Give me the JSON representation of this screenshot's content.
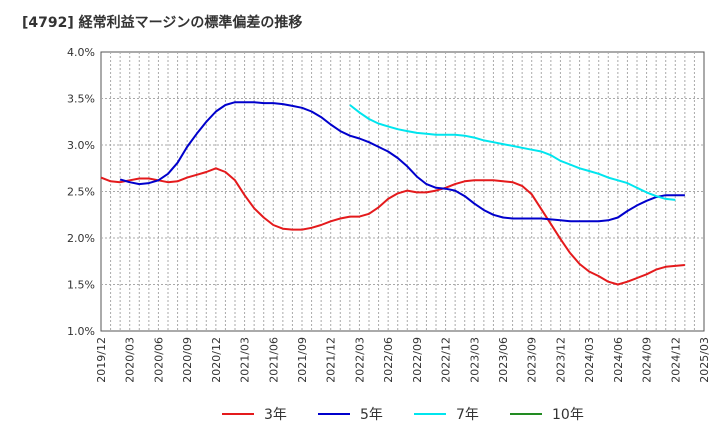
{
  "chart_data": {
    "type": "line",
    "title": "[4792]  経常利益マージンの標準偏差の推移",
    "xlabel": "",
    "ylabel": "",
    "ylim": [
      1.0,
      4.0
    ],
    "y_ticks": [
      "1.0%",
      "1.5%",
      "2.0%",
      "2.5%",
      "3.0%",
      "3.5%",
      "4.0%"
    ],
    "y_tick_values": [
      1.0,
      1.5,
      2.0,
      2.5,
      3.0,
      3.5,
      4.0
    ],
    "x_range": [
      "2019/12",
      "2025/03"
    ],
    "x_ticks": [
      "2019/12",
      "2020/03",
      "2020/06",
      "2020/09",
      "2020/12",
      "2021/03",
      "2021/06",
      "2021/09",
      "2021/12",
      "2022/03",
      "2022/06",
      "2022/09",
      "2022/12",
      "2023/03",
      "2023/06",
      "2023/09",
      "2023/12",
      "2024/03",
      "2024/06",
      "2024/09",
      "2024/12",
      "2025/03"
    ],
    "grid": true,
    "legend_position": "bottom",
    "series": [
      {
        "name": "3年",
        "color": "#e41a1c",
        "points": [
          [
            "2019/12",
            2.65
          ],
          [
            "2020/01",
            2.61
          ],
          [
            "2020/02",
            2.6
          ],
          [
            "2020/03",
            2.62
          ],
          [
            "2020/04",
            2.64
          ],
          [
            "2020/05",
            2.64
          ],
          [
            "2020/06",
            2.62
          ],
          [
            "2020/07",
            2.6
          ],
          [
            "2020/08",
            2.61
          ],
          [
            "2020/09",
            2.65
          ],
          [
            "2020/10",
            2.68
          ],
          [
            "2020/11",
            2.71
          ],
          [
            "2020/12",
            2.75
          ],
          [
            "2021/01",
            2.71
          ],
          [
            "2021/02",
            2.62
          ],
          [
            "2021/03",
            2.46
          ],
          [
            "2021/04",
            2.32
          ],
          [
            "2021/05",
            2.22
          ],
          [
            "2021/06",
            2.14
          ],
          [
            "2021/07",
            2.1
          ],
          [
            "2021/08",
            2.09
          ],
          [
            "2021/09",
            2.09
          ],
          [
            "2021/10",
            2.11
          ],
          [
            "2021/11",
            2.14
          ],
          [
            "2021/12",
            2.18
          ],
          [
            "2022/01",
            2.21
          ],
          [
            "2022/02",
            2.23
          ],
          [
            "2022/03",
            2.23
          ],
          [
            "2022/04",
            2.26
          ],
          [
            "2022/05",
            2.33
          ],
          [
            "2022/06",
            2.42
          ],
          [
            "2022/07",
            2.48
          ],
          [
            "2022/08",
            2.51
          ],
          [
            "2022/09",
            2.49
          ],
          [
            "2022/10",
            2.49
          ],
          [
            "2022/11",
            2.51
          ],
          [
            "2022/12",
            2.54
          ],
          [
            "2023/01",
            2.58
          ],
          [
            "2023/02",
            2.61
          ],
          [
            "2023/03",
            2.62
          ],
          [
            "2023/04",
            2.62
          ],
          [
            "2023/05",
            2.62
          ],
          [
            "2023/06",
            2.61
          ],
          [
            "2023/07",
            2.6
          ],
          [
            "2023/08",
            2.56
          ],
          [
            "2023/09",
            2.47
          ],
          [
            "2023/10",
            2.31
          ],
          [
            "2023/11",
            2.15
          ],
          [
            "2023/12",
            1.99
          ],
          [
            "2024/01",
            1.84
          ],
          [
            "2024/02",
            1.72
          ],
          [
            "2024/03",
            1.64
          ],
          [
            "2024/04",
            1.59
          ],
          [
            "2024/05",
            1.53
          ],
          [
            "2024/06",
            1.5
          ],
          [
            "2024/07",
            1.53
          ],
          [
            "2024/08",
            1.57
          ],
          [
            "2024/09",
            1.61
          ],
          [
            "2024/10",
            1.66
          ],
          [
            "2024/11",
            1.69
          ],
          [
            "2024/12",
            1.7
          ],
          [
            "2025/01",
            1.71
          ]
        ]
      },
      {
        "name": "5年",
        "color": "#0000cc",
        "points": [
          [
            "2020/02",
            2.63
          ],
          [
            "2020/03",
            2.6
          ],
          [
            "2020/04",
            2.58
          ],
          [
            "2020/05",
            2.59
          ],
          [
            "2020/06",
            2.62
          ],
          [
            "2020/07",
            2.69
          ],
          [
            "2020/08",
            2.81
          ],
          [
            "2020/09",
            2.98
          ],
          [
            "2020/10",
            3.12
          ],
          [
            "2020/11",
            3.25
          ],
          [
            "2020/12",
            3.36
          ],
          [
            "2021/01",
            3.43
          ],
          [
            "2021/02",
            3.46
          ],
          [
            "2021/03",
            3.46
          ],
          [
            "2021/04",
            3.46
          ],
          [
            "2021/05",
            3.45
          ],
          [
            "2021/06",
            3.45
          ],
          [
            "2021/07",
            3.44
          ],
          [
            "2021/08",
            3.42
          ],
          [
            "2021/09",
            3.4
          ],
          [
            "2021/10",
            3.36
          ],
          [
            "2021/11",
            3.3
          ],
          [
            "2021/12",
            3.22
          ],
          [
            "2022/01",
            3.15
          ],
          [
            "2022/02",
            3.1
          ],
          [
            "2022/03",
            3.07
          ],
          [
            "2022/04",
            3.03
          ],
          [
            "2022/05",
            2.98
          ],
          [
            "2022/06",
            2.93
          ],
          [
            "2022/07",
            2.86
          ],
          [
            "2022/08",
            2.77
          ],
          [
            "2022/09",
            2.66
          ],
          [
            "2022/10",
            2.58
          ],
          [
            "2022/11",
            2.54
          ],
          [
            "2022/12",
            2.53
          ],
          [
            "2023/01",
            2.51
          ],
          [
            "2023/02",
            2.45
          ],
          [
            "2023/03",
            2.37
          ],
          [
            "2023/04",
            2.3
          ],
          [
            "2023/05",
            2.25
          ],
          [
            "2023/06",
            2.22
          ],
          [
            "2023/07",
            2.21
          ],
          [
            "2023/08",
            2.21
          ],
          [
            "2023/09",
            2.21
          ],
          [
            "2023/10",
            2.21
          ],
          [
            "2023/11",
            2.2
          ],
          [
            "2023/12",
            2.19
          ],
          [
            "2024/01",
            2.18
          ],
          [
            "2024/02",
            2.18
          ],
          [
            "2024/03",
            2.18
          ],
          [
            "2024/04",
            2.18
          ],
          [
            "2024/05",
            2.19
          ],
          [
            "2024/06",
            2.22
          ],
          [
            "2024/07",
            2.29
          ],
          [
            "2024/08",
            2.35
          ],
          [
            "2024/09",
            2.4
          ],
          [
            "2024/10",
            2.44
          ],
          [
            "2024/11",
            2.46
          ],
          [
            "2024/12",
            2.46
          ],
          [
            "2025/01",
            2.46
          ]
        ]
      },
      {
        "name": "7年",
        "color": "#00e5ee",
        "points": [
          [
            "2022/02",
            3.43
          ],
          [
            "2022/03",
            3.35
          ],
          [
            "2022/04",
            3.28
          ],
          [
            "2022/05",
            3.23
          ],
          [
            "2022/06",
            3.2
          ],
          [
            "2022/07",
            3.17
          ],
          [
            "2022/08",
            3.15
          ],
          [
            "2022/09",
            3.13
          ],
          [
            "2022/10",
            3.12
          ],
          [
            "2022/11",
            3.11
          ],
          [
            "2022/12",
            3.11
          ],
          [
            "2023/01",
            3.11
          ],
          [
            "2023/02",
            3.1
          ],
          [
            "2023/03",
            3.08
          ],
          [
            "2023/04",
            3.05
          ],
          [
            "2023/05",
            3.03
          ],
          [
            "2023/06",
            3.01
          ],
          [
            "2023/07",
            2.99
          ],
          [
            "2023/08",
            2.97
          ],
          [
            "2023/09",
            2.95
          ],
          [
            "2023/10",
            2.93
          ],
          [
            "2023/11",
            2.89
          ],
          [
            "2023/12",
            2.83
          ],
          [
            "2024/01",
            2.79
          ],
          [
            "2024/02",
            2.75
          ],
          [
            "2024/03",
            2.72
          ],
          [
            "2024/04",
            2.69
          ],
          [
            "2024/05",
            2.65
          ],
          [
            "2024/06",
            2.62
          ],
          [
            "2024/07",
            2.59
          ],
          [
            "2024/08",
            2.54
          ],
          [
            "2024/09",
            2.49
          ],
          [
            "2024/10",
            2.45
          ],
          [
            "2024/11",
            2.42
          ],
          [
            "2024/12",
            2.41
          ]
        ]
      },
      {
        "name": "10年",
        "color": "#228b22",
        "points": []
      }
    ]
  }
}
